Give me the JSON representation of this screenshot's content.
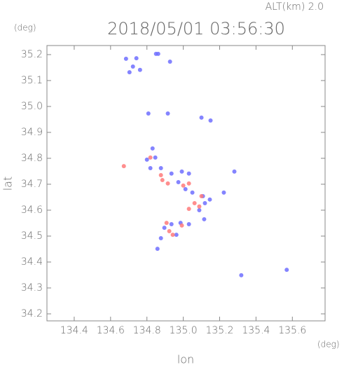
{
  "chart_data": {
    "type": "scatter",
    "title": "2018/05/01 03:56:30",
    "subtitle": "ALT(km) 2.0",
    "x_label": "lon",
    "y_label": "lat",
    "x_unit": "(deg)",
    "y_unit": "(deg)",
    "xlim": [
      134.25,
      135.78
    ],
    "ylim": [
      34.173,
      35.235
    ],
    "xticks": [
      {
        "value": 134.4,
        "label": "134.4"
      },
      {
        "value": 134.6,
        "label": "134.6"
      },
      {
        "value": 134.8,
        "label": "134.8"
      },
      {
        "value": 135.0,
        "label": "135.0"
      },
      {
        "value": 135.2,
        "label": "135.2"
      },
      {
        "value": 135.4,
        "label": "135.4"
      },
      {
        "value": 135.6,
        "label": "135.6"
      }
    ],
    "yticks": [
      {
        "value": 34.2,
        "label": "34.2"
      },
      {
        "value": 34.3,
        "label": "34.3"
      },
      {
        "value": 34.4,
        "label": "34.4"
      },
      {
        "value": 34.5,
        "label": "34.5"
      },
      {
        "value": 34.6,
        "label": "34.6"
      },
      {
        "value": 34.7,
        "label": "34.7"
      },
      {
        "value": 34.8,
        "label": "34.8"
      },
      {
        "value": 34.9,
        "label": "34.9"
      },
      {
        "value": 35.0,
        "label": "35.0"
      },
      {
        "value": 35.1,
        "label": "35.1"
      },
      {
        "value": 35.2,
        "label": "35.2"
      }
    ],
    "series": [
      {
        "color": "#6f6fff",
        "x": [
          134.685,
          134.742,
          134.723,
          134.704,
          134.762,
          134.85,
          134.862,
          134.927,
          134.808,
          134.915,
          135.1,
          135.15,
          134.831,
          134.846,
          134.8,
          134.819,
          134.877,
          134.935,
          134.992,
          135.031,
          134.973,
          135.012,
          135.05,
          135.108,
          135.119,
          135.088,
          135.146,
          135.281,
          135.223,
          134.896,
          134.935,
          134.985,
          135.031,
          134.877,
          134.962,
          134.858,
          135.319,
          135.115,
          135.569
        ],
        "y": [
          35.184,
          35.186,
          35.154,
          35.132,
          35.141,
          35.203,
          35.203,
          35.173,
          34.973,
          34.973,
          34.957,
          34.946,
          34.838,
          34.803,
          34.795,
          34.762,
          34.762,
          34.741,
          34.749,
          34.741,
          34.708,
          34.681,
          34.668,
          34.654,
          34.627,
          34.6,
          34.641,
          34.749,
          34.668,
          34.532,
          34.546,
          34.551,
          34.546,
          34.492,
          34.505,
          34.451,
          34.349,
          34.565,
          34.37
        ]
      },
      {
        "color": "#ff7a7a",
        "x": [
          134.673,
          134.819,
          134.877,
          134.915,
          134.885,
          135.0,
          135.031,
          135.062,
          135.031,
          135.088,
          134.942,
          134.923,
          134.992,
          134.908,
          135.1
        ],
        "y": [
          34.77,
          34.803,
          34.735,
          34.703,
          34.716,
          34.695,
          34.703,
          34.627,
          34.605,
          34.614,
          34.505,
          34.519,
          34.541,
          34.551,
          34.654
        ]
      }
    ]
  }
}
